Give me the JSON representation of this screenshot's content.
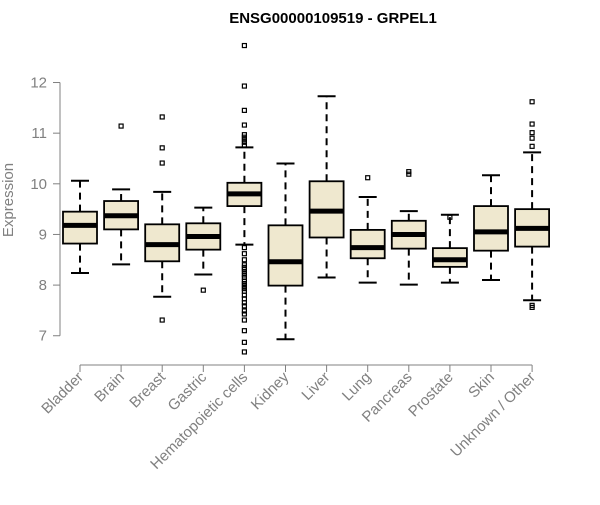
{
  "chart_data": {
    "type": "boxplot",
    "title": "ENSG00000109519 - GRPEL1",
    "xlabel": "",
    "ylabel": "Expression",
    "ylim": [
      6.6,
      12.8
    ],
    "yticks": [
      7,
      8,
      9,
      10,
      11,
      12
    ],
    "grid": false,
    "legend": "none",
    "colors": {
      "box_fill": "#efe8cf",
      "stroke": "#000000",
      "axis_text": "#808080"
    },
    "categories": [
      "Bladder",
      "Brain",
      "Breast",
      "Gastric",
      "Hematopoietic cells",
      "Kidney",
      "Liver",
      "Lung",
      "Pancreas",
      "Prostate",
      "Skin",
      "Unknown / Other"
    ],
    "boxes": [
      {
        "q1": 8.82,
        "median": 9.18,
        "q3": 9.45,
        "whisker_low": 8.24,
        "whisker_high": 10.06,
        "outliers": []
      },
      {
        "q1": 9.1,
        "median": 9.37,
        "q3": 9.66,
        "whisker_low": 8.41,
        "whisker_high": 9.89,
        "outliers": [
          11.14
        ]
      },
      {
        "q1": 8.47,
        "median": 8.8,
        "q3": 9.2,
        "whisker_low": 7.77,
        "whisker_high": 9.84,
        "outliers": [
          11.32,
          10.71,
          10.41,
          7.31
        ]
      },
      {
        "q1": 8.7,
        "median": 8.96,
        "q3": 9.22,
        "whisker_low": 8.21,
        "whisker_high": 9.53,
        "outliers": [
          7.9
        ]
      },
      {
        "q1": 9.56,
        "median": 9.8,
        "q3": 10.02,
        "whisker_low": 8.8,
        "whisker_high": 10.72,
        "outliers": [
          12.73,
          11.93,
          11.45,
          11.16,
          10.97,
          10.92,
          10.87,
          10.82,
          10.76,
          8.74,
          8.62,
          8.5,
          8.4,
          8.35,
          8.31,
          8.26,
          8.2,
          8.15,
          8.08,
          8.03,
          7.98,
          7.93,
          7.88,
          7.8,
          7.73,
          7.65,
          7.59,
          7.49,
          7.43,
          7.31,
          7.1,
          6.87,
          6.68
        ]
      },
      {
        "q1": 7.99,
        "median": 8.46,
        "q3": 9.18,
        "whisker_low": 6.93,
        "whisker_high": 10.4,
        "outliers": []
      },
      {
        "q1": 8.94,
        "median": 9.46,
        "q3": 10.05,
        "whisker_low": 8.15,
        "whisker_high": 11.73,
        "outliers": []
      },
      {
        "q1": 8.53,
        "median": 8.74,
        "q3": 9.09,
        "whisker_low": 8.05,
        "whisker_high": 9.74,
        "outliers": [
          10.12
        ]
      },
      {
        "q1": 8.72,
        "median": 9.0,
        "q3": 9.27,
        "whisker_low": 8.01,
        "whisker_high": 9.46,
        "outliers": [
          10.24,
          10.19
        ]
      },
      {
        "q1": 8.36,
        "median": 8.5,
        "q3": 8.73,
        "whisker_low": 8.05,
        "whisker_high": 9.39,
        "outliers": [
          9.34
        ]
      },
      {
        "q1": 8.68,
        "median": 9.05,
        "q3": 9.56,
        "whisker_low": 8.1,
        "whisker_high": 10.17,
        "outliers": []
      },
      {
        "q1": 8.76,
        "median": 9.12,
        "q3": 9.5,
        "whisker_low": 7.7,
        "whisker_high": 10.62,
        "outliers": [
          11.62,
          11.18,
          11.01,
          10.9,
          10.74,
          7.6,
          7.56
        ]
      }
    ]
  }
}
